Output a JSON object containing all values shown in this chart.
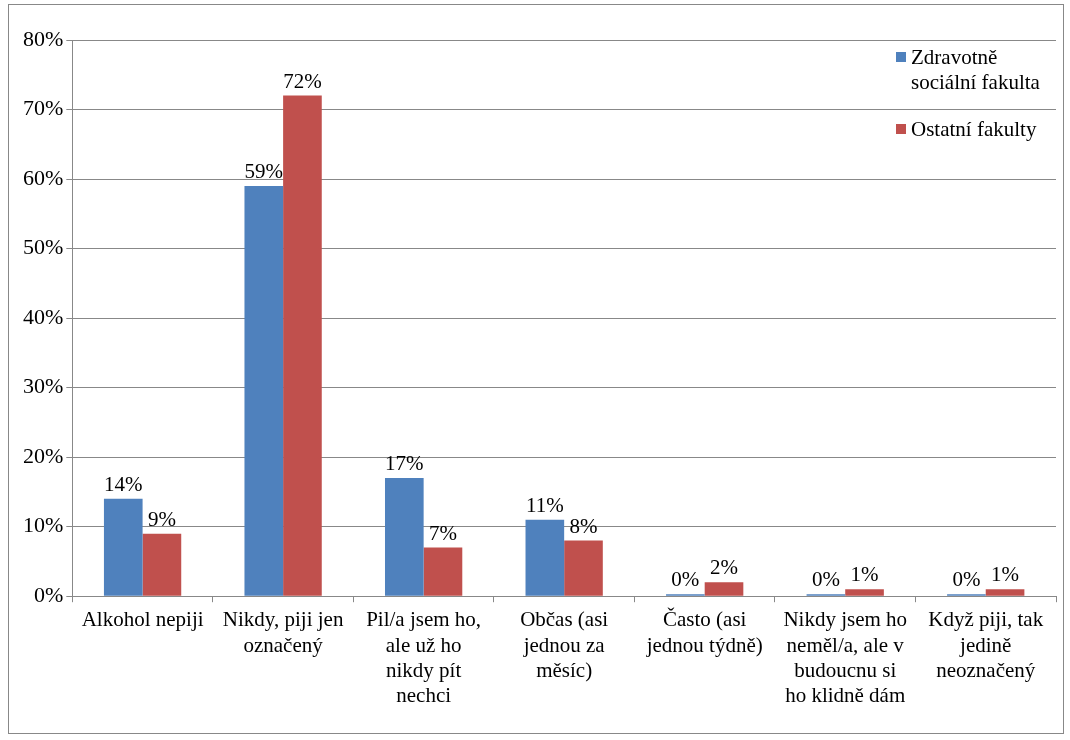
{
  "chart_data": {
    "type": "bar",
    "categories": [
      "Alkohol nepiji",
      "Nikdy, piji jen označený",
      "Pil/a jsem ho, ale už ho nikdy pít nechci",
      "Občas (asi jednou za měsíc)",
      "Často (asi jednou týdně)",
      "Nikdy jsem ho neměl/a, ale v budoucnu si ho klidně dám",
      "Když piji, tak jedině neoznačený"
    ],
    "series": [
      {
        "name": "Zdravotně sociální fakulta",
        "color": "#4f81bd",
        "values": [
          14,
          59,
          17,
          11,
          0,
          0,
          0
        ],
        "value_labels": [
          "14%",
          "59%",
          "17%",
          "11%",
          "0%",
          "0%",
          "0%"
        ]
      },
      {
        "name": "Ostatní fakulty",
        "color": "#c0504d",
        "values": [
          9,
          72,
          7,
          8,
          2,
          1,
          1
        ],
        "value_labels": [
          "9%",
          "72%",
          "7%",
          "8%",
          "2%",
          "1%",
          "1%"
        ]
      }
    ],
    "ylim": [
      0,
      80
    ],
    "yticks": [
      {
        "value": 0,
        "label": "0%"
      },
      {
        "value": 10,
        "label": "10%"
      },
      {
        "value": 20,
        "label": "20%"
      },
      {
        "value": 30,
        "label": "30%"
      },
      {
        "value": 40,
        "label": "40%"
      },
      {
        "value": 50,
        "label": "50%"
      },
      {
        "value": 60,
        "label": "60%"
      },
      {
        "value": 70,
        "label": "70%"
      },
      {
        "value": 80,
        "label": "80%"
      }
    ],
    "grid": "y",
    "legend": "top right"
  }
}
